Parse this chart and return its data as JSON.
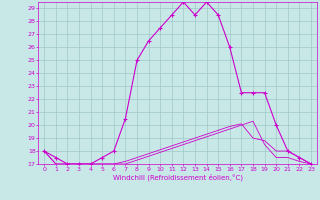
{
  "title": "",
  "xlabel": "Windchill (Refroidissement éolien,°C)",
  "xlim": [
    -0.5,
    23.5
  ],
  "ylim": [
    17,
    29.5
  ],
  "yticks": [
    17,
    18,
    19,
    20,
    21,
    22,
    23,
    24,
    25,
    26,
    27,
    28,
    29
  ],
  "xticks": [
    0,
    1,
    2,
    3,
    4,
    5,
    6,
    7,
    8,
    9,
    10,
    11,
    12,
    13,
    14,
    15,
    16,
    17,
    18,
    19,
    20,
    21,
    22,
    23
  ],
  "bg_color": "#c8e8e8",
  "line_color": "#cc00cc",
  "grid_color": "#a0c8c8",
  "line1_x": [
    0,
    1,
    2,
    3,
    4,
    5,
    6,
    7,
    8,
    9,
    10,
    11,
    12,
    13,
    14,
    15,
    16,
    17,
    18,
    19,
    20,
    21,
    22,
    23
  ],
  "line1_y": [
    18,
    17.5,
    17,
    17,
    17,
    17.5,
    18,
    20.5,
    25,
    26.5,
    27.5,
    28.5,
    29.5,
    28.5,
    29.5,
    28.5,
    26,
    22.5,
    22.5,
    22.5,
    20,
    18,
    17.5,
    17
  ],
  "line2_x": [
    0,
    1,
    2,
    3,
    4,
    5,
    6,
    7,
    8,
    9,
    10,
    11,
    12,
    13,
    14,
    15,
    16,
    17,
    18,
    19,
    20,
    21,
    22,
    23
  ],
  "line2_y": [
    17,
    17,
    17,
    17,
    17,
    17,
    17,
    17,
    17,
    17,
    17,
    17,
    17,
    17,
    17,
    17,
    17,
    17,
    17,
    17,
    17,
    17,
    17,
    17
  ],
  "line3_x": [
    0,
    1,
    2,
    3,
    4,
    5,
    6,
    7,
    8,
    9,
    10,
    11,
    12,
    13,
    14,
    15,
    16,
    17,
    18,
    19,
    20,
    21,
    22,
    23
  ],
  "line3_y": [
    18,
    17,
    17,
    17,
    17,
    17,
    17,
    17.2,
    17.5,
    17.8,
    18.1,
    18.4,
    18.7,
    19.0,
    19.3,
    19.6,
    19.9,
    20.1,
    19.0,
    18.8,
    18.0,
    18.0,
    17.5,
    17
  ],
  "line4_x": [
    0,
    1,
    2,
    3,
    4,
    5,
    6,
    7,
    8,
    9,
    10,
    11,
    12,
    13,
    14,
    15,
    16,
    17,
    18,
    19,
    20,
    21,
    22,
    23
  ],
  "line4_y": [
    18,
    17,
    17,
    17,
    17,
    17,
    17,
    17,
    17.3,
    17.6,
    17.9,
    18.2,
    18.5,
    18.8,
    19.1,
    19.4,
    19.7,
    20.0,
    20.3,
    18.5,
    17.5,
    17.5,
    17.2,
    17
  ]
}
